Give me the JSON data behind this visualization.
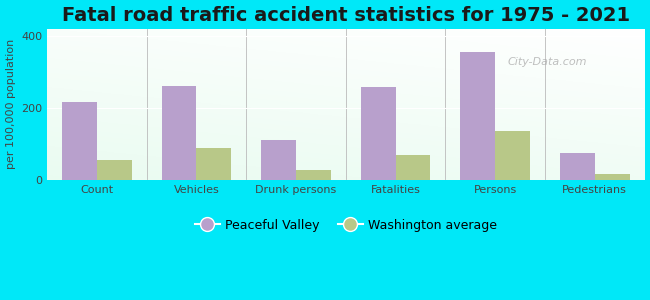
{
  "title": "Fatal road traffic accident statistics for 1975 - 2021",
  "categories": [
    "Count",
    "Vehicles",
    "Drunk persons",
    "Fatalities",
    "Persons",
    "Pedestrians"
  ],
  "peaceful_valley": [
    215,
    260,
    110,
    257,
    355,
    75
  ],
  "washington_avg": [
    55,
    88,
    28,
    68,
    135,
    15
  ],
  "ylabel": "per 100,000 population",
  "ylim": [
    0,
    420
  ],
  "yticks": [
    0,
    200,
    400
  ],
  "bar_color_pv": "#b8a0cc",
  "bar_color_wa": "#b8c888",
  "bg_color_fig": "#00e8f8",
  "legend_label_pv": "Peaceful Valley",
  "legend_label_wa": "Washington average",
  "title_fontsize": 14,
  "axis_label_fontsize": 8,
  "tick_fontsize": 8,
  "bar_width": 0.35,
  "watermark": "City-Data.com"
}
